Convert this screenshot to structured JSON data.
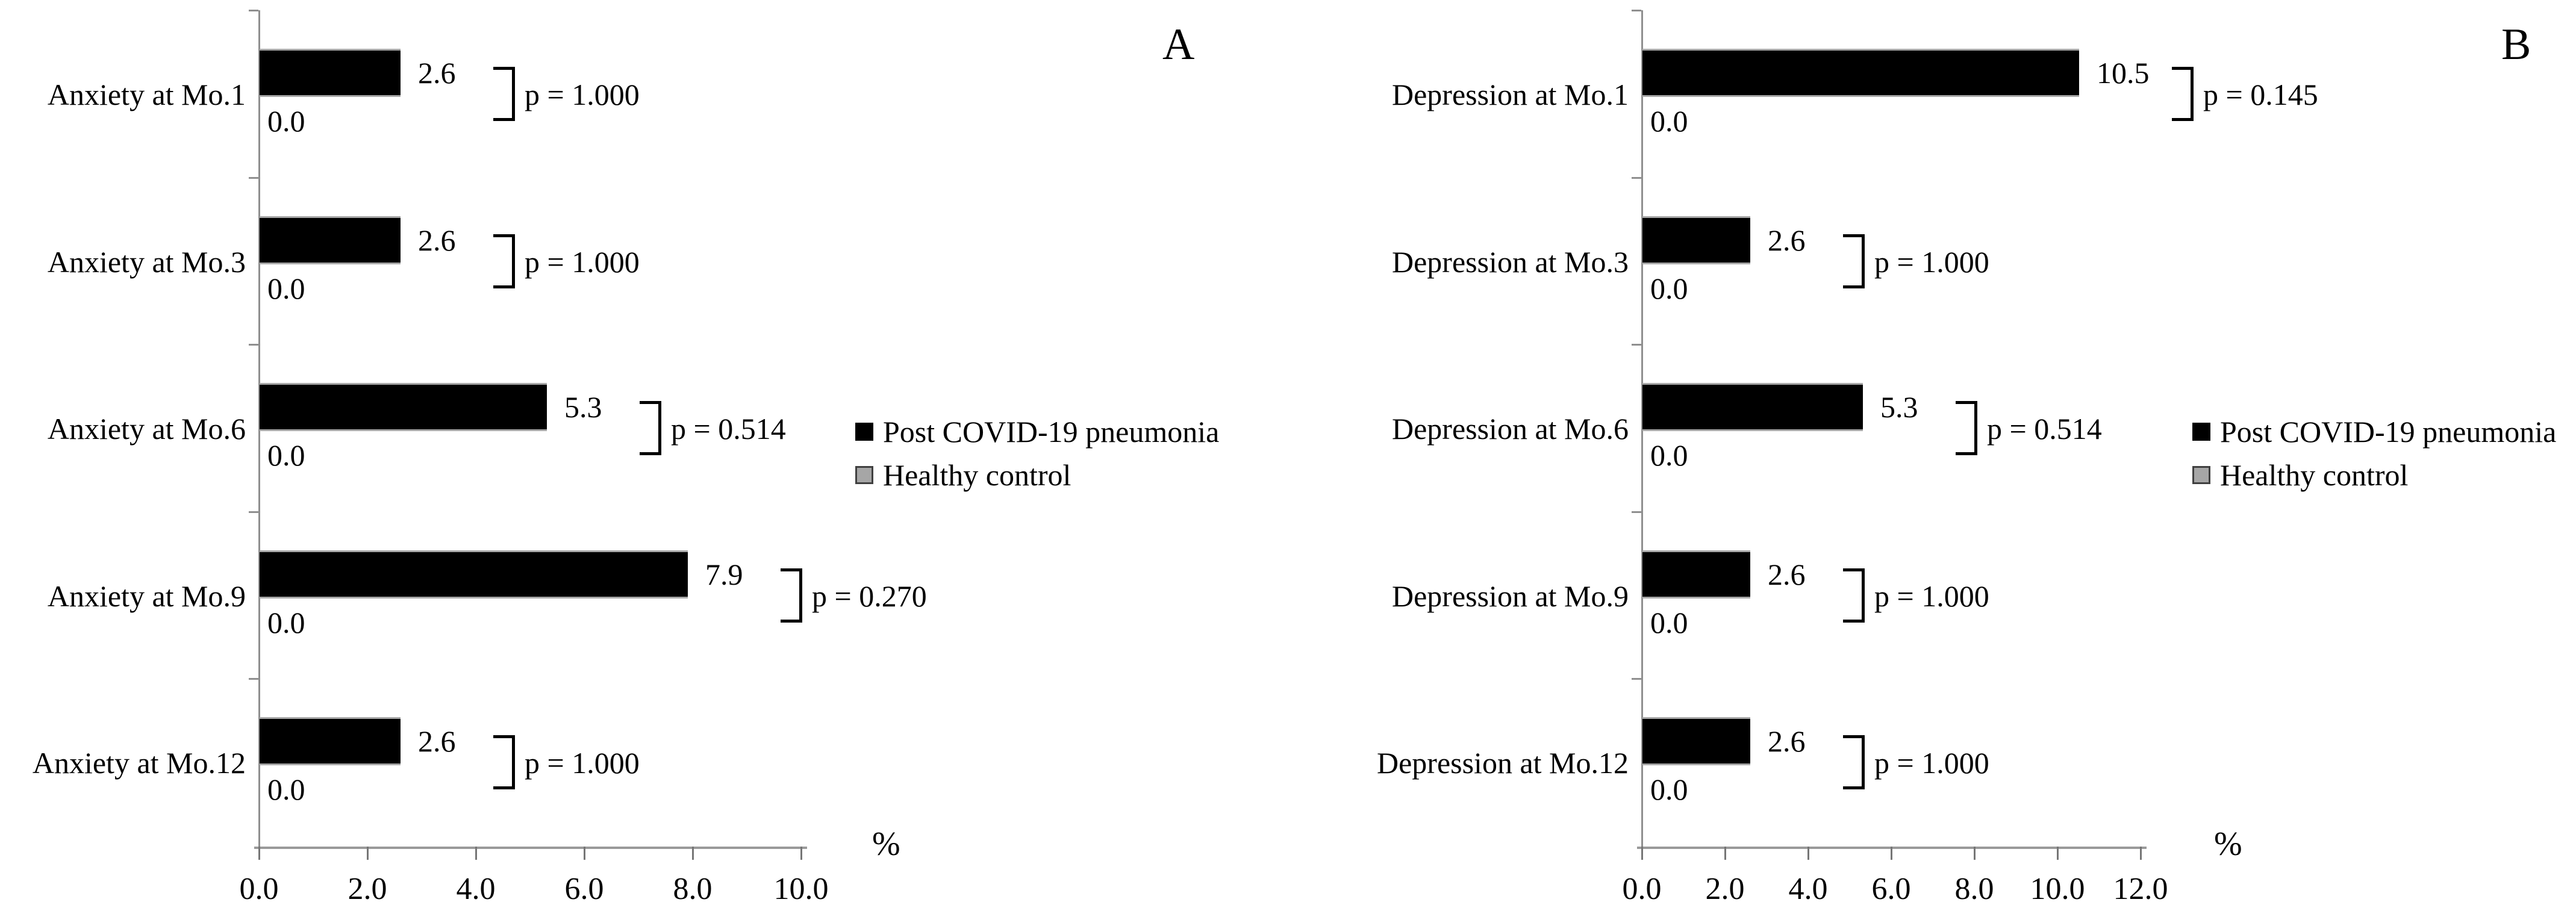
{
  "figure": {
    "background": "#ffffff"
  },
  "legend": {
    "series1_label": "Post COVID-19 pneumonia",
    "series1_color": "#000000",
    "series2_label": "Healthy control",
    "series2_color": "#a6a6a6",
    "position": "right-middle-inside"
  },
  "chart_data": [
    {
      "type": "bar",
      "orientation": "horizontal",
      "panel_label": "A",
      "categories": [
        "Anxiety at Mo.1",
        "Anxiety at Mo.3",
        "Anxiety at Mo.6",
        "Anxiety at Mo.9",
        "Anxiety at Mo.12"
      ],
      "series": [
        {
          "name": "Post COVID-19 pneumonia",
          "color": "#000000",
          "values": [
            2.6,
            2.6,
            5.3,
            7.9,
            2.6
          ],
          "labels": [
            "2.6",
            "2.6",
            "5.3",
            "7.9",
            "2.6"
          ]
        },
        {
          "name": "Healthy control",
          "color": "#a6a6a6",
          "values": [
            0.0,
            0.0,
            0.0,
            0.0,
            0.0
          ],
          "labels": [
            "0.0",
            "0.0",
            "0.0",
            "0.0",
            "0.0"
          ]
        }
      ],
      "p_values": [
        "p = 1.000",
        "p = 1.000",
        "p = 0.514",
        "p = 0.270",
        "p = 1.000"
      ],
      "xlabel": "%",
      "xlim": [
        0.0,
        10.0
      ],
      "xticks": [
        "0.0",
        "2.0",
        "4.0",
        "6.0",
        "8.0",
        "10.0"
      ],
      "grid": false
    },
    {
      "type": "bar",
      "orientation": "horizontal",
      "panel_label": "B",
      "categories": [
        "Depression at Mo.1",
        "Depression at Mo.3",
        "Depression at Mo.6",
        "Depression at Mo.9",
        "Depression at Mo.12"
      ],
      "series": [
        {
          "name": "Post COVID-19 pneumonia",
          "color": "#000000",
          "values": [
            10.5,
            2.6,
            5.3,
            2.6,
            2.6
          ],
          "labels": [
            "10.5",
            "2.6",
            "5.3",
            "2.6",
            "2.6"
          ]
        },
        {
          "name": "Healthy control",
          "color": "#a6a6a6",
          "values": [
            0.0,
            0.0,
            0.0,
            0.0,
            0.0
          ],
          "labels": [
            "0.0",
            "0.0",
            "0.0",
            "0.0",
            "0.0"
          ]
        }
      ],
      "p_values": [
        "p = 0.145",
        "p = 1.000",
        "p = 0.514",
        "p = 1.000",
        "p = 1.000"
      ],
      "xlabel": "%",
      "xlim": [
        0.0,
        12.0
      ],
      "xticks": [
        "0.0",
        "2.0",
        "4.0",
        "6.0",
        "8.0",
        "10.0",
        "12.0"
      ],
      "grid": false
    }
  ]
}
